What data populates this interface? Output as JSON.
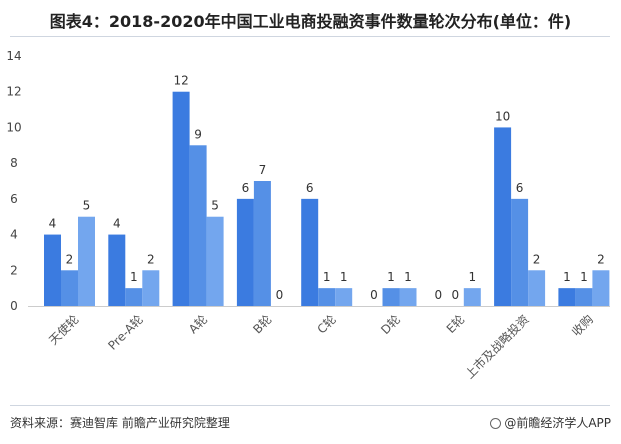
{
  "title": "图表4：2018-2020年中国工业电商投融资事件数量轮次分布(单位：件)",
  "source": "资料来源：赛迪智库 前瞻产业研究院整理",
  "brand": "@前瞻经济学人APP",
  "colors": {
    "series": [
      "#3b7be0",
      "#5590e6",
      "#73a6ee"
    ]
  },
  "chart_data": {
    "type": "bar",
    "title": "图表4：2018-2020年中国工业电商投融资事件数量轮次分布(单位：件)",
    "categories": [
      "天使轮",
      "Pre-A轮",
      "A轮",
      "B轮",
      "C轮",
      "D轮",
      "E轮",
      "上市及战略投资",
      "收购"
    ],
    "series": [
      {
        "values": [
          4,
          4,
          12,
          6,
          6,
          0,
          0,
          10,
          1
        ]
      },
      {
        "values": [
          2,
          1,
          9,
          7,
          1,
          1,
          0,
          6,
          1
        ]
      },
      {
        "values": [
          5,
          2,
          5,
          0,
          1,
          1,
          1,
          2,
          2
        ]
      }
    ],
    "ylim": [
      0,
      14
    ],
    "yticks": [
      0,
      2,
      4,
      6,
      8,
      10,
      12,
      14
    ],
    "grid": false,
    "legend": false
  }
}
